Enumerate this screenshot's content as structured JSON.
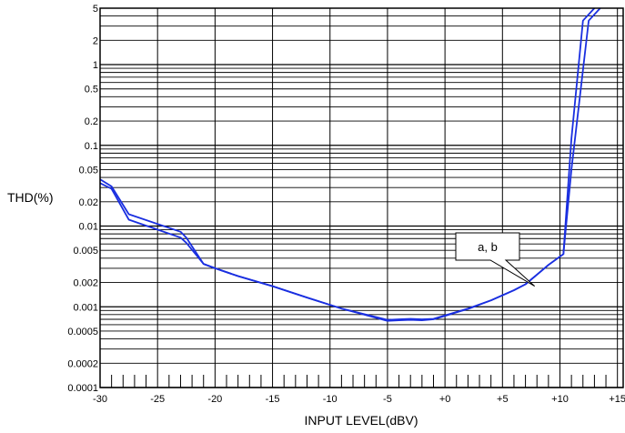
{
  "chart_data": {
    "type": "line",
    "title": "",
    "xlabel": "INPUT LEVEL(dBV)",
    "ylabel": "THD(%)",
    "xlim": [
      -30,
      15.5
    ],
    "ylim": [
      0.0001,
      5
    ],
    "yscale": "log",
    "grid": true,
    "x_tick_labels": [
      {
        "value": -30,
        "label": "-30"
      },
      {
        "value": -25,
        "label": "-25"
      },
      {
        "value": -20,
        "label": "-20"
      },
      {
        "value": -15,
        "label": "-15"
      },
      {
        "value": -10,
        "label": "-10"
      },
      {
        "value": -5,
        "label": "-5"
      },
      {
        "value": 0,
        "label": "+0"
      },
      {
        "value": 5,
        "label": "+5"
      },
      {
        "value": 10,
        "label": "+10"
      },
      {
        "value": 15,
        "label": "+15"
      }
    ],
    "y_tick_labels": [
      {
        "value": 5,
        "label": "5"
      },
      {
        "value": 2,
        "label": "2"
      },
      {
        "value": 1,
        "label": "1"
      },
      {
        "value": 0.5,
        "label": "0.5"
      },
      {
        "value": 0.2,
        "label": "0.2"
      },
      {
        "value": 0.1,
        "label": "0.1"
      },
      {
        "value": 0.05,
        "label": "0.05"
      },
      {
        "value": 0.02,
        "label": "0.02"
      },
      {
        "value": 0.01,
        "label": "0.01"
      },
      {
        "value": 0.005,
        "label": "0.005"
      },
      {
        "value": 0.002,
        "label": "0.002"
      },
      {
        "value": 0.001,
        "label": "0.001"
      },
      {
        "value": 0.0005,
        "label": "0.0005"
      },
      {
        "value": 0.0002,
        "label": "0.0002"
      },
      {
        "value": 0.0001,
        "label": "0.0001"
      }
    ],
    "line_color": "#1a2fe0",
    "series": [
      {
        "x": [
          -30,
          -29,
          -27.5,
          -23,
          -22.5,
          -21,
          -20,
          -18,
          -15,
          -12,
          -9,
          -5,
          -4,
          -3,
          -2,
          -1,
          0,
          2,
          4,
          6,
          7,
          8,
          9,
          10.3,
          11,
          12.5,
          13.5
        ],
        "y": [
          0.034,
          0.029,
          0.012,
          0.0072,
          0.0062,
          0.0034,
          0.003,
          0.0024,
          0.0018,
          0.0013,
          0.00095,
          0.00069,
          0.0007,
          0.00071,
          0.0007,
          0.00071,
          0.00078,
          0.00095,
          0.0012,
          0.0016,
          0.0019,
          0.0025,
          0.0033,
          0.0045,
          0.05,
          3.5,
          5
        ]
      },
      {
        "x": [
          -30,
          -29,
          -27.5,
          -23,
          -22.5,
          -21,
          -20,
          -18,
          -15,
          -12,
          -9,
          -5,
          -4,
          -3,
          -2,
          -1,
          0,
          2,
          4,
          6,
          7,
          8,
          9,
          10.3,
          11,
          12,
          13
        ],
        "y": [
          0.038,
          0.031,
          0.014,
          0.0085,
          0.0072,
          0.0034,
          0.003,
          0.0024,
          0.0018,
          0.0013,
          0.00095,
          0.00067,
          0.00068,
          0.00069,
          0.00068,
          0.0007,
          0.00077,
          0.00094,
          0.0012,
          0.0016,
          0.0019,
          0.0025,
          0.0033,
          0.0045,
          0.12,
          3.5,
          5
        ]
      }
    ],
    "annotations": [
      {
        "text": "a, b",
        "pointer_x": 7.8,
        "pointer_y": 0.0018
      }
    ]
  }
}
